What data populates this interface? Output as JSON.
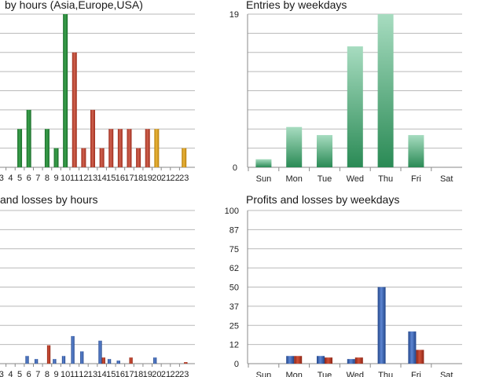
{
  "colors": {
    "green_dark": "#1e7e32",
    "red": "#b03a28",
    "orange": "#d49a17",
    "weekday_green": "#2e8b5a",
    "profit_blue": "#2f56a5",
    "loss_red": "#a83220"
  },
  "chart_data": [
    {
      "id": "hours-entries",
      "type": "bar",
      "title": "by hours (Asia,Europe,USA)",
      "categories": [
        "3",
        "4",
        "5",
        "6",
        "7",
        "8",
        "9",
        "10",
        "11",
        "12",
        "13",
        "14",
        "15",
        "16",
        "17",
        "18",
        "19",
        "20",
        "21",
        "22",
        "23"
      ],
      "values": [
        0,
        0,
        4,
        6,
        0,
        4,
        2,
        16,
        12,
        2,
        6,
        2,
        4,
        4,
        4,
        2,
        4,
        4,
        0,
        0,
        2
      ],
      "bar_colors": [
        "green",
        "green",
        "green",
        "green",
        "green",
        "green",
        "green",
        "green",
        "red",
        "red",
        "red",
        "red",
        "red",
        "red",
        "red",
        "red",
        "red",
        "orange",
        "orange",
        "orange",
        "orange"
      ],
      "ylim": [
        0,
        16
      ],
      "grid": true
    },
    {
      "id": "weekday-entries",
      "type": "bar",
      "title": "Entries by weekdays",
      "categories": [
        "Sun",
        "Mon",
        "Tue",
        "Wed",
        "Thu",
        "Fri",
        "Sat"
      ],
      "values": [
        1,
        5,
        4,
        15,
        19,
        4,
        0
      ],
      "ylim": [
        0,
        19
      ],
      "y_ticks": [
        "0",
        "19"
      ],
      "grid": true
    },
    {
      "id": "hours-profits",
      "type": "bar",
      "title": "and losses by hours",
      "categories": [
        "3",
        "4",
        "5",
        "6",
        "7",
        "8",
        "9",
        "10",
        "11",
        "12",
        "13",
        "14",
        "15",
        "16",
        "17",
        "18",
        "19",
        "20",
        "21",
        "22",
        "23"
      ],
      "series": [
        {
          "values": [
            0,
            0,
            0,
            5,
            3,
            0,
            3,
            5,
            18,
            8,
            0,
            15,
            3,
            2,
            0,
            0,
            0,
            4,
            0,
            0,
            0
          ]
        },
        {
          "values": [
            0,
            0,
            0,
            0,
            0,
            12,
            0,
            0,
            0,
            0,
            0,
            4,
            0,
            0,
            4,
            0,
            0,
            0,
            0,
            0,
            1
          ]
        }
      ],
      "ylim": [
        0,
        100
      ],
      "grid": true
    },
    {
      "id": "weekday-profits",
      "type": "bar",
      "title": "Profits and losses by weekdays",
      "categories": [
        "Sun",
        "Mon",
        "Tue",
        "Wed",
        "Thu",
        "Fri",
        "Sat"
      ],
      "series": [
        {
          "values": [
            0,
            5,
            5,
            3,
            50,
            21,
            0
          ]
        },
        {
          "values": [
            0,
            5,
            4,
            4,
            0,
            9,
            0
          ]
        }
      ],
      "ylim": [
        0,
        100
      ],
      "y_ticks": [
        "0",
        "12",
        "25",
        "37",
        "50",
        "62",
        "75",
        "87",
        "100"
      ],
      "grid": true
    }
  ]
}
